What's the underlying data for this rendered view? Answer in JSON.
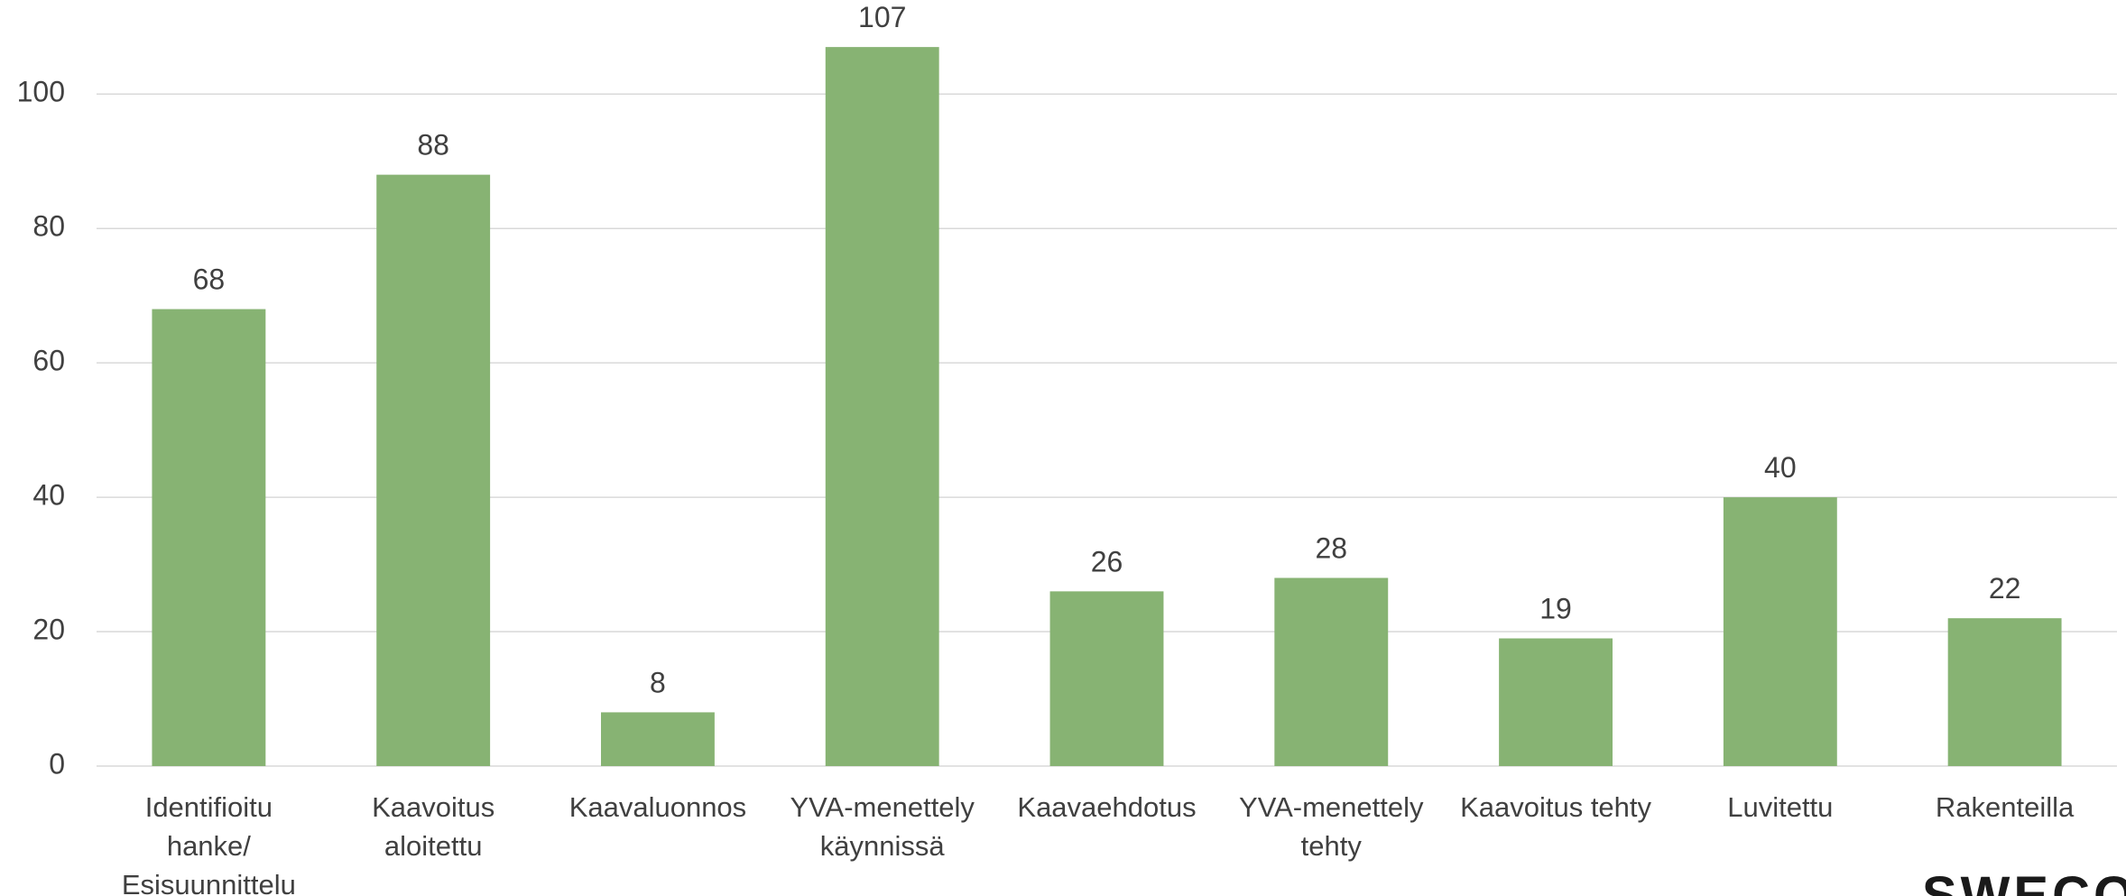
{
  "chart_data": {
    "type": "bar",
    "categories": [
      "Identifioitu hanke/ Esisuunnittelu",
      "Kaavoitus aloitettu",
      "Kaavaluonnos",
      "YVA-menettely käynnissä",
      "Kaavaehdotus",
      "YVA-menettely tehty",
      "Kaavoitus tehty",
      "Luvitettu",
      "Rakenteilla"
    ],
    "values": [
      68,
      88,
      8,
      107,
      26,
      28,
      19,
      40,
      22
    ],
    "color": "#87b373",
    "ylim": [
      0,
      114
    ],
    "yticks": [
      0,
      20,
      40,
      60,
      80,
      100
    ],
    "grid": true,
    "logo": "SWECO"
  }
}
